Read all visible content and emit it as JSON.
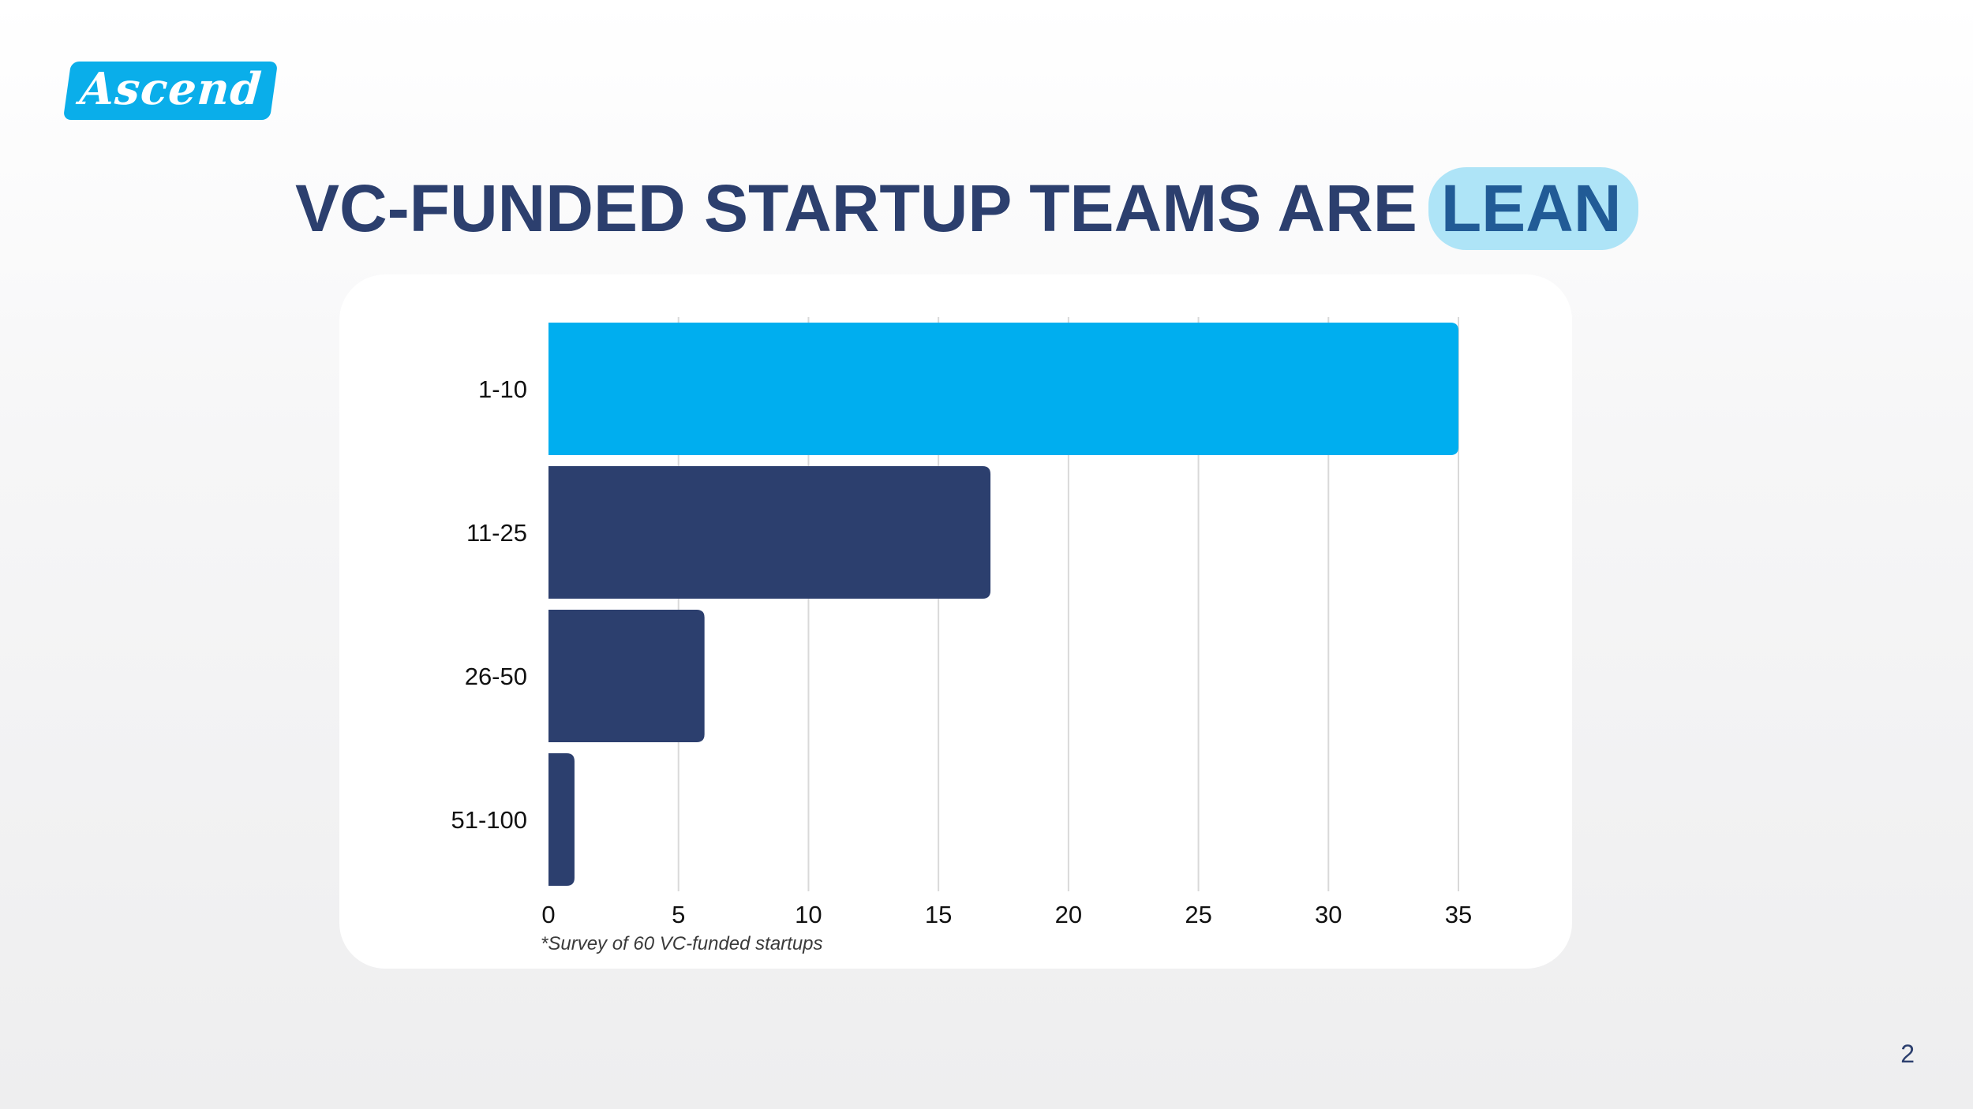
{
  "brand": {
    "logo_text": "Ascend",
    "colors": {
      "accent": "#0aaeea",
      "navy": "#2c3f6e",
      "highlight_bg": "#aee4f7",
      "highlight_text": "#215b96"
    }
  },
  "slide": {
    "title_main": "VC-FUNDED STARTUP TEAMS ARE",
    "title_highlight": "LEAN",
    "footnote": "*Survey of 60 VC-funded startups",
    "page_number": "2"
  },
  "chart_data": {
    "type": "bar",
    "orientation": "horizontal",
    "categories": [
      "1-10",
      "11-25",
      "26-50",
      "51-100"
    ],
    "values": [
      35,
      17,
      6,
      1
    ],
    "bar_colors": [
      "#00aeef",
      "#2c3f6e",
      "#2c3f6e",
      "#2c3f6e"
    ],
    "xlim": [
      0,
      35
    ],
    "xticks": [
      "0",
      "5",
      "10",
      "15",
      "20",
      "25",
      "30",
      "35"
    ],
    "grid": true,
    "legend": "none",
    "title": "",
    "xlabel": "",
    "ylabel": ""
  }
}
